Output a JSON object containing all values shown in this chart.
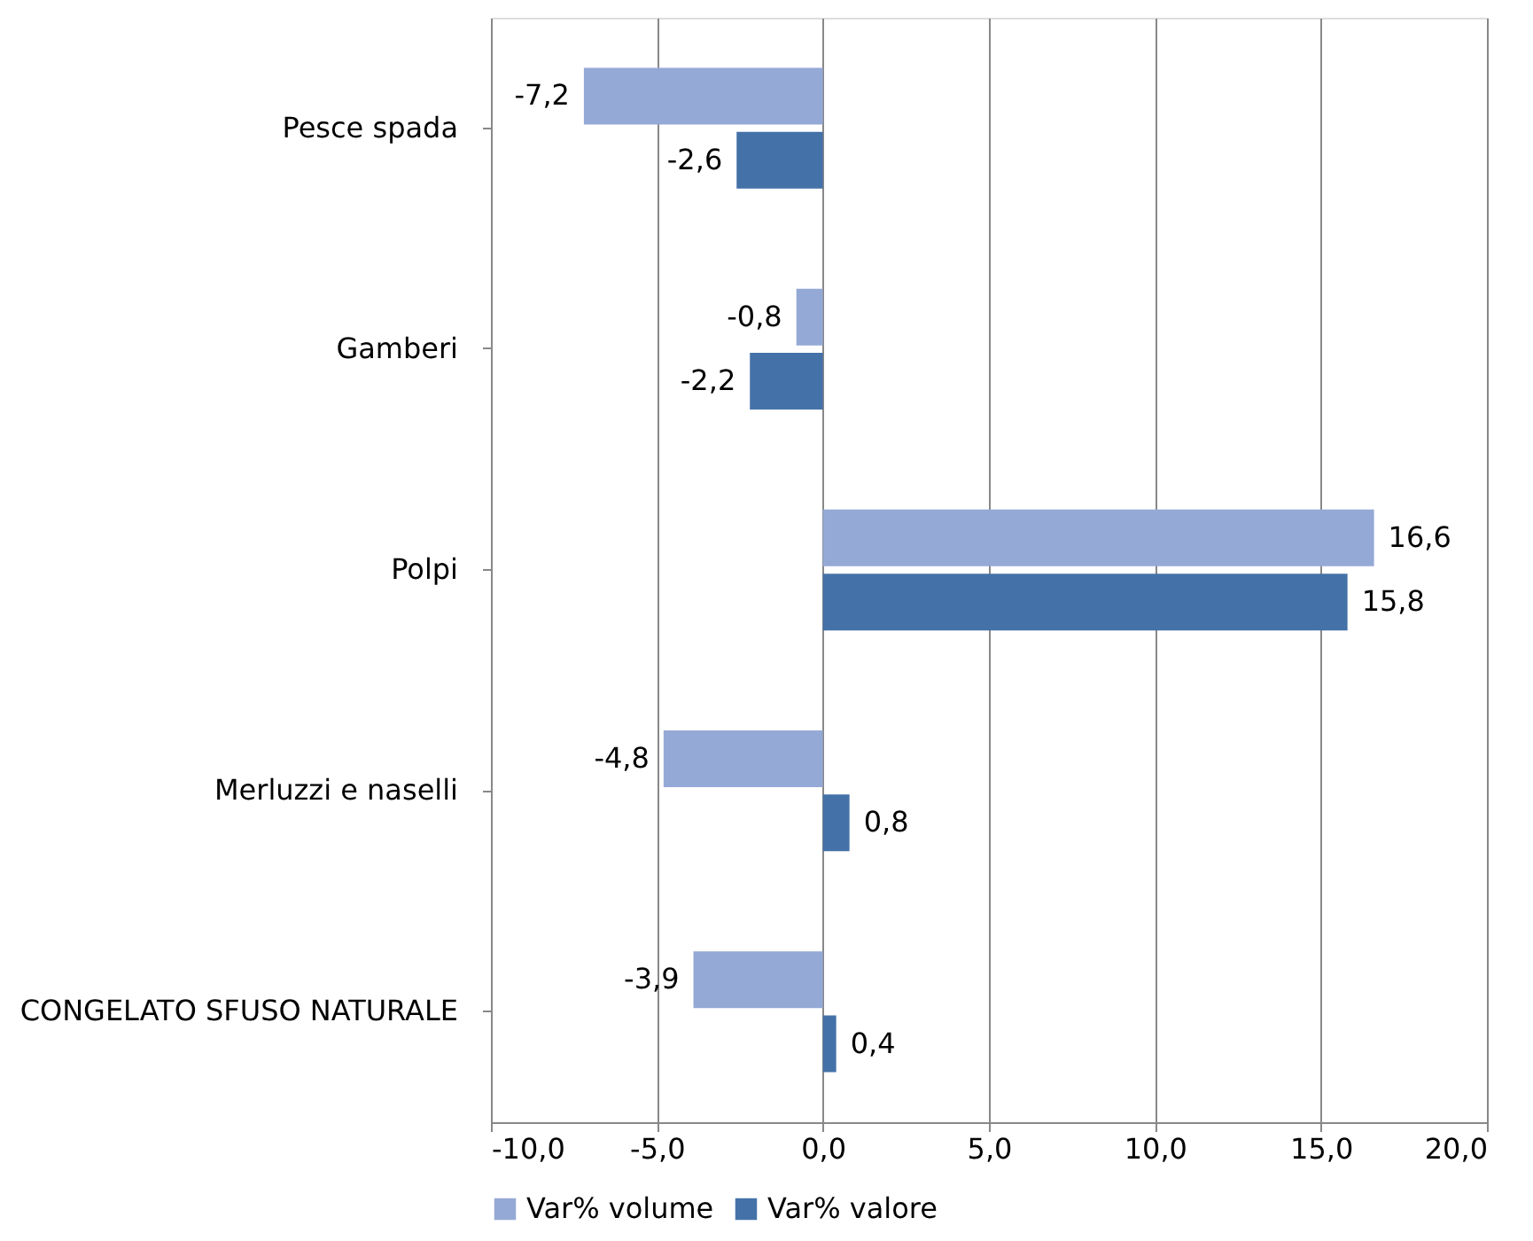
{
  "chart_data": {
    "type": "bar",
    "orientation": "horizontal",
    "categories": [
      "Pesce spada",
      "Gamberi",
      "Polpi",
      "Merluzzi e naselli",
      "CONGELATO SFUSO NATURALE"
    ],
    "series": [
      {
        "name": "Var% volume",
        "color": "#95a9d6",
        "values": [
          -7.2,
          -0.8,
          16.6,
          -4.8,
          -3.9
        ],
        "value_labels": [
          "-7,2",
          "-0,8",
          "16,6",
          "-4,8",
          "-3,9"
        ]
      },
      {
        "name": "Var% valore",
        "color": "#4472a8",
        "values": [
          -2.6,
          -2.2,
          15.8,
          0.8,
          0.4
        ],
        "value_labels": [
          "-2,6",
          "-2,2",
          "15,8",
          "0,8",
          "0,4"
        ]
      }
    ],
    "xlim": [
      -10,
      20
    ],
    "xticks": [
      {
        "value": -10,
        "label": "-10,0"
      },
      {
        "value": -5,
        "label": "-5,0"
      },
      {
        "value": 0,
        "label": "0,0"
      },
      {
        "value": 5,
        "label": "5,0"
      },
      {
        "value": 10,
        "label": "10,0"
      },
      {
        "value": 15,
        "label": "15,0"
      },
      {
        "value": 20,
        "label": "20,0"
      }
    ],
    "grid": "x",
    "legend": "bottom"
  }
}
